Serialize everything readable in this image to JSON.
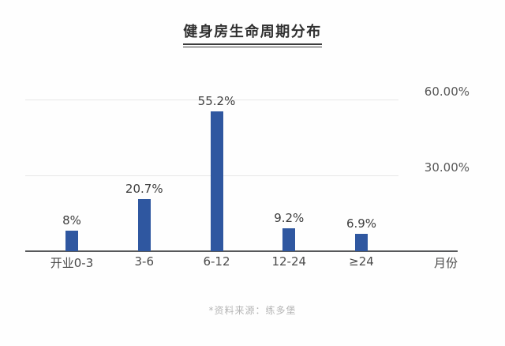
{
  "title": "健身房生命周期分布",
  "chart_data": {
    "type": "bar",
    "title": "健身房生命周期分布",
    "categories": [
      "开业0-3",
      "3-6",
      "6-12",
      "12-24",
      "≥24"
    ],
    "values": [
      8,
      20.7,
      55.2,
      9.2,
      6.9
    ],
    "value_labels": [
      "8%",
      "20.7%",
      "55.2%",
      "9.2%",
      "6.9%"
    ],
    "xlabel": "月份",
    "ylabel": "",
    "ylim": [
      0,
      60
    ],
    "yticks": [
      {
        "value": 30,
        "label": "30.00%"
      },
      {
        "value": 60,
        "label": "60.00%"
      }
    ],
    "ytick_side": "right",
    "grid": "horizontal",
    "legend": "none",
    "source_note": "*资料来源：练多堡"
  },
  "colors": {
    "bar": "#2f57a0",
    "gridline": "#e7e7e7",
    "axis": "#58595b",
    "title": "#303030",
    "tick_text": "#4a4a4a",
    "ytick_text": "#595959",
    "source_text": "#b5b5b5"
  }
}
